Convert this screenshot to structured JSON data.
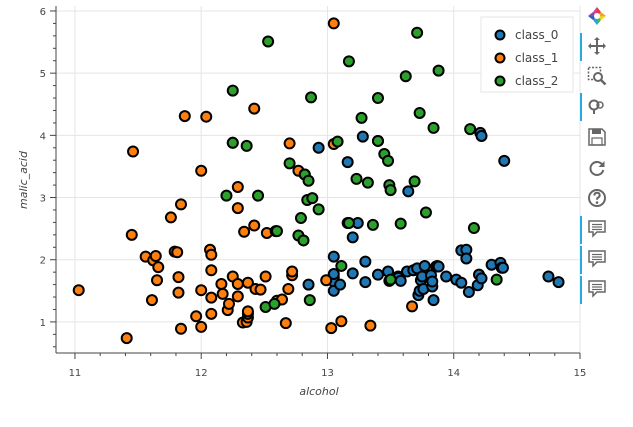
{
  "chart_data": {
    "type": "scatter",
    "xlabel": "alcohol",
    "ylabel": "malic_acid",
    "xlim": [
      10.85,
      15.0
    ],
    "ylim": [
      0.5,
      6.08
    ],
    "xticks": [
      "11",
      "12",
      "13",
      "14",
      "15"
    ],
    "yticks": [
      "1",
      "2",
      "3",
      "4",
      "5",
      "6"
    ],
    "grid": true,
    "legend_position": "top-right",
    "series": [
      {
        "name": "class_0",
        "color": "#1f77b4",
        "points": [
          [
            13.05,
            1.72
          ],
          [
            13.05,
            1.65
          ],
          [
            13.05,
            1.5
          ],
          [
            13.05,
            1.77
          ],
          [
            13.05,
            2.05
          ],
          [
            13.1,
            1.6
          ],
          [
            13.2,
            1.78
          ],
          [
            13.24,
            2.59
          ],
          [
            13.2,
            2.36
          ],
          [
            13.28,
            3.98
          ],
          [
            13.3,
            1.64
          ],
          [
            13.3,
            1.97
          ],
          [
            13.4,
            1.76
          ],
          [
            13.48,
            1.81
          ],
          [
            13.56,
            1.73
          ],
          [
            13.56,
            1.71
          ],
          [
            13.58,
            1.66
          ],
          [
            13.63,
            1.81
          ],
          [
            13.64,
            3.1
          ],
          [
            13.68,
            1.83
          ],
          [
            13.71,
            1.86
          ],
          [
            13.72,
            1.43
          ],
          [
            13.73,
            1.5
          ],
          [
            13.74,
            1.67
          ],
          [
            13.75,
            1.73
          ],
          [
            13.76,
            1.53
          ],
          [
            13.77,
            1.9
          ],
          [
            13.82,
            1.75
          ],
          [
            13.83,
            1.57
          ],
          [
            13.83,
            1.65
          ],
          [
            13.84,
            1.35
          ],
          [
            13.86,
            1.89
          ],
          [
            13.87,
            1.9
          ],
          [
            13.88,
            1.89
          ],
          [
            13.94,
            1.73
          ],
          [
            14.02,
            1.68
          ],
          [
            14.06,
            1.63
          ],
          [
            14.06,
            2.15
          ],
          [
            14.1,
            2.16
          ],
          [
            14.1,
            2.02
          ],
          [
            14.12,
            1.48
          ],
          [
            14.19,
            1.59
          ],
          [
            14.2,
            1.76
          ],
          [
            14.21,
            4.04
          ],
          [
            14.22,
            3.99
          ],
          [
            14.22,
            1.7
          ],
          [
            14.3,
            1.92
          ],
          [
            14.37,
            1.95
          ],
          [
            14.38,
            1.87
          ],
          [
            14.39,
            1.87
          ],
          [
            14.4,
            3.59
          ],
          [
            14.75,
            1.73
          ],
          [
            14.83,
            1.64
          ],
          [
            12.93,
            3.8
          ],
          [
            12.85,
            1.6
          ],
          [
            13.16,
            3.57
          ]
        ]
      },
      {
        "name": "class_1",
        "color": "#ff7f0e",
        "points": [
          [
            11.03,
            1.51
          ],
          [
            11.41,
            0.74
          ],
          [
            11.45,
            2.4
          ],
          [
            11.46,
            3.74
          ],
          [
            11.56,
            2.05
          ],
          [
            11.61,
            1.35
          ],
          [
            11.62,
            1.99
          ],
          [
            11.64,
            2.06
          ],
          [
            11.65,
            1.67
          ],
          [
            11.66,
            1.88
          ],
          [
            11.76,
            2.68
          ],
          [
            11.79,
            2.13
          ],
          [
            11.81,
            2.12
          ],
          [
            11.82,
            1.72
          ],
          [
            11.82,
            1.47
          ],
          [
            11.84,
            0.89
          ],
          [
            11.84,
            2.89
          ],
          [
            11.87,
            4.31
          ],
          [
            11.96,
            1.09
          ],
          [
            12.0,
            0.92
          ],
          [
            12.0,
            3.43
          ],
          [
            12.0,
            1.51
          ],
          [
            12.04,
            4.3
          ],
          [
            12.07,
            2.16
          ],
          [
            12.08,
            2.08
          ],
          [
            12.08,
            1.83
          ],
          [
            12.08,
            1.13
          ],
          [
            12.08,
            1.39
          ],
          [
            12.16,
            1.61
          ],
          [
            12.17,
            1.45
          ],
          [
            12.21,
            1.19
          ],
          [
            12.22,
            1.29
          ],
          [
            12.25,
            1.73
          ],
          [
            12.25,
            3.88
          ],
          [
            12.29,
            1.61
          ],
          [
            12.29,
            3.17
          ],
          [
            12.29,
            2.83
          ],
          [
            12.29,
            1.41
          ],
          [
            12.33,
            0.99
          ],
          [
            12.34,
            2.45
          ],
          [
            12.36,
            1.0
          ],
          [
            12.37,
            1.07
          ],
          [
            12.37,
            1.13
          ],
          [
            12.37,
            1.17
          ],
          [
            12.37,
            1.63
          ],
          [
            12.42,
            2.55
          ],
          [
            12.42,
            4.43
          ],
          [
            12.43,
            1.53
          ],
          [
            12.47,
            1.52
          ],
          [
            12.51,
            1.73
          ],
          [
            12.52,
            2.43
          ],
          [
            12.6,
            1.34
          ],
          [
            12.64,
            1.36
          ],
          [
            12.67,
            0.98
          ],
          [
            12.69,
            1.53
          ],
          [
            12.7,
            3.87
          ],
          [
            12.72,
            1.75
          ],
          [
            12.72,
            1.81
          ],
          [
            12.77,
            3.43
          ],
          [
            12.82,
            3.37
          ],
          [
            12.99,
            1.67
          ],
          [
            13.03,
            0.9
          ],
          [
            13.05,
            3.86
          ],
          [
            13.05,
            5.8
          ],
          [
            13.11,
            1.01
          ],
          [
            13.34,
            0.94
          ],
          [
            13.67,
            1.25
          ],
          [
            13.49,
            1.66
          ],
          [
            12.59,
            2.46
          ]
        ]
      },
      {
        "name": "class_2",
        "color": "#2ca02c",
        "points": [
          [
            12.2,
            3.03
          ],
          [
            12.25,
            4.72
          ],
          [
            12.25,
            3.88
          ],
          [
            12.36,
            3.83
          ],
          [
            12.45,
            3.03
          ],
          [
            12.51,
            1.24
          ],
          [
            12.53,
            5.51
          ],
          [
            12.6,
            2.46
          ],
          [
            12.58,
            1.29
          ],
          [
            12.7,
            3.55
          ],
          [
            12.77,
            2.39
          ],
          [
            12.79,
            2.67
          ],
          [
            12.81,
            2.31
          ],
          [
            12.82,
            3.37
          ],
          [
            12.84,
            2.96
          ],
          [
            12.85,
            3.27
          ],
          [
            12.86,
            1.35
          ],
          [
            12.87,
            4.61
          ],
          [
            12.88,
            2.99
          ],
          [
            12.93,
            2.81
          ],
          [
            13.08,
            3.9
          ],
          [
            13.11,
            1.9
          ],
          [
            13.16,
            2.59
          ],
          [
            13.17,
            5.19
          ],
          [
            13.17,
            2.59
          ],
          [
            13.23,
            3.3
          ],
          [
            13.27,
            4.28
          ],
          [
            13.32,
            3.24
          ],
          [
            13.36,
            2.56
          ],
          [
            13.4,
            3.91
          ],
          [
            13.4,
            4.6
          ],
          [
            13.45,
            3.7
          ],
          [
            13.48,
            3.59
          ],
          [
            13.49,
            3.2
          ],
          [
            13.5,
            3.12
          ],
          [
            13.58,
            2.58
          ],
          [
            13.62,
            4.95
          ],
          [
            13.69,
            3.26
          ],
          [
            13.71,
            5.65
          ],
          [
            13.73,
            4.36
          ],
          [
            13.78,
            2.76
          ],
          [
            13.84,
            4.12
          ],
          [
            13.88,
            5.04
          ],
          [
            14.13,
            4.1
          ],
          [
            14.16,
            2.51
          ],
          [
            14.34,
            1.68
          ],
          [
            13.5,
            1.68
          ],
          [
            13.4,
            3.91
          ]
        ]
      }
    ]
  },
  "toolbar": {
    "tools": [
      {
        "icon": "bokeh-logo-icon",
        "active": false
      },
      {
        "icon": "pan-icon",
        "active": true
      },
      {
        "icon": "box-zoom-icon",
        "active": false
      },
      {
        "icon": "wheel-zoom-icon",
        "active": true
      },
      {
        "icon": "save-icon",
        "active": false
      },
      {
        "icon": "reset-icon",
        "active": false
      },
      {
        "icon": "help-icon",
        "active": false
      },
      {
        "icon": "hover-icon",
        "active": true
      },
      {
        "icon": "hover-icon",
        "active": true
      },
      {
        "icon": "hover-icon",
        "active": true
      }
    ]
  }
}
